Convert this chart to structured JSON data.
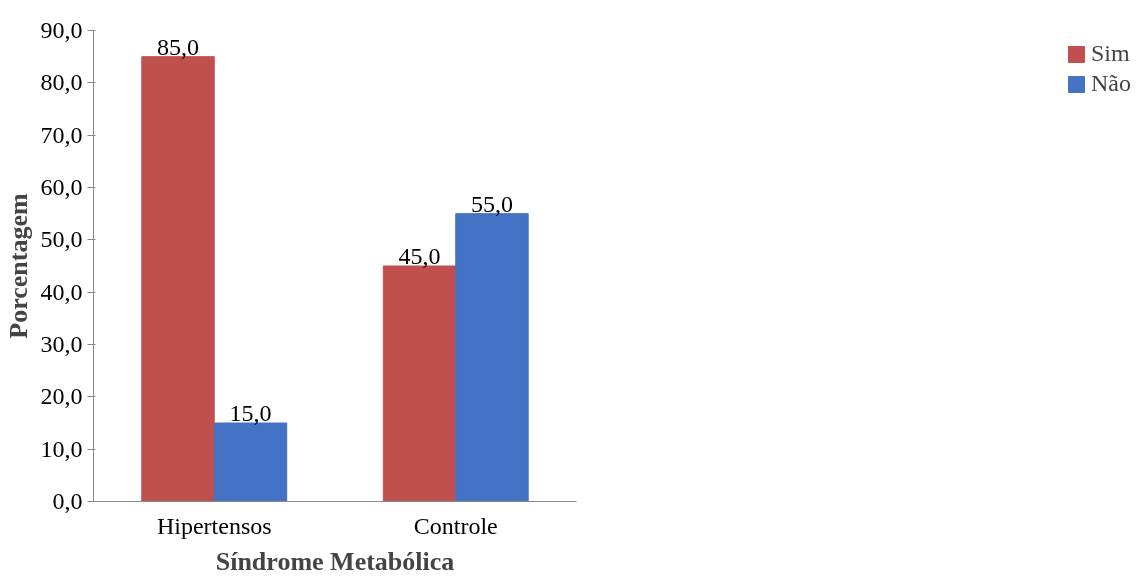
{
  "chart_data": {
    "type": "bar",
    "xlabel": "Síndrome Metabólica",
    "ylabel": "Porcentagem",
    "categories": [
      "Hipertensos",
      "Controle"
    ],
    "series": [
      {
        "name": "Sim",
        "color": "#c0504d",
        "values": [
          85,
          45
        ],
        "value_labels": [
          "85,0",
          "45,0"
        ]
      },
      {
        "name": "Não",
        "color": "#4472c4",
        "values": [
          15,
          55
        ],
        "value_labels": [
          "15,0",
          "55,0"
        ]
      }
    ],
    "ylim": [
      0,
      90
    ],
    "yticks": [
      {
        "value": 0,
        "label": "0,0"
      },
      {
        "value": 10,
        "label": "10,0"
      },
      {
        "value": 20,
        "label": "20,0"
      },
      {
        "value": 30,
        "label": "30,0"
      },
      {
        "value": 40,
        "label": "40,0"
      },
      {
        "value": 50,
        "label": "50,0"
      },
      {
        "value": 60,
        "label": "60,0"
      },
      {
        "value": 70,
        "label": "70,0"
      },
      {
        "value": 80,
        "label": "80,0"
      },
      {
        "value": 90,
        "label": "90,0"
      }
    ],
    "grid": false,
    "legend": "right"
  }
}
